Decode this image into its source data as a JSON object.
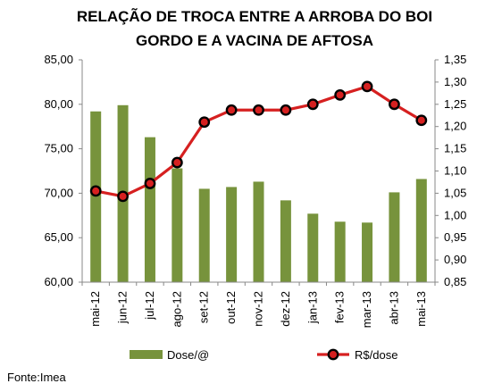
{
  "chart_data": {
    "type": "bar+line",
    "title_lines": [
      "RELAÇÃO DE TROCA ENTRE A ARROBA DO BOI",
      "GORDO E A VACINA DE AFTOSA"
    ],
    "categories": [
      "mai-12",
      "jun-12",
      "jul-12",
      "ago-12",
      "set-12",
      "out-12",
      "nov-12",
      "dez-12",
      "jan-13",
      "fev-13",
      "mar-13",
      "abr-13",
      "mai-13"
    ],
    "series": [
      {
        "name": "Dose/@",
        "type": "bar",
        "axis": "left",
        "color": "#77933c",
        "values": [
          79.2,
          79.9,
          76.3,
          72.8,
          70.5,
          70.7,
          71.3,
          69.2,
          67.7,
          66.8,
          66.7,
          70.1,
          71.6
        ]
      },
      {
        "name": "R$/dose",
        "type": "line",
        "axis": "right",
        "color": "#d62020",
        "marker_color": "#000000",
        "values": [
          1.055,
          1.043,
          1.072,
          1.119,
          1.21,
          1.237,
          1.237,
          1.237,
          1.25,
          1.271,
          1.29,
          1.25,
          1.214
        ]
      }
    ],
    "y_left": {
      "min": 60,
      "max": 85,
      "step": 5,
      "tick_labels": [
        "60,00",
        "65,00",
        "70,00",
        "75,00",
        "80,00",
        "85,00"
      ]
    },
    "y_right": {
      "min": 0.85,
      "max": 1.35,
      "step": 0.05,
      "tick_labels": [
        "0,85",
        "0,90",
        "0,95",
        "1,00",
        "1,05",
        "1,10",
        "1,15",
        "1,20",
        "1,25",
        "1,30",
        "1,35"
      ]
    },
    "grid": false,
    "legend_position": "bottom"
  },
  "source": "Fonte:Imea"
}
